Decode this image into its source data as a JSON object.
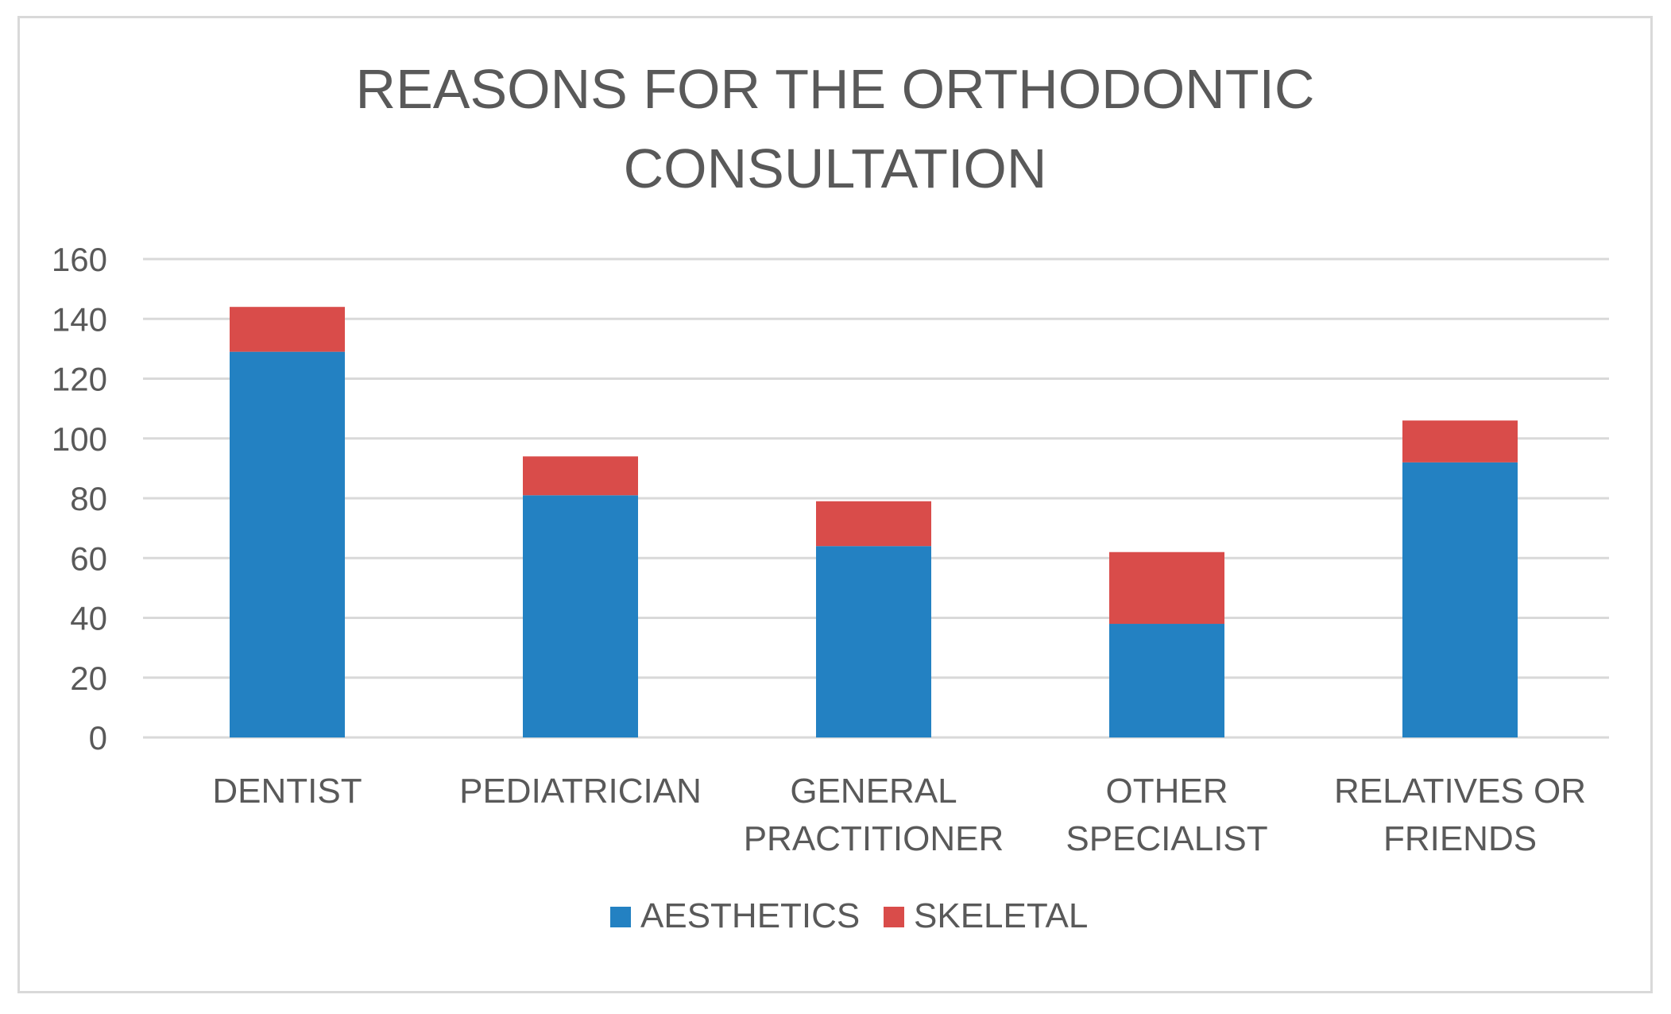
{
  "chart_data": {
    "type": "bar",
    "stacked": true,
    "title": [
      "REASONS FOR THE ORTHODONTIC",
      "CONSULTATION"
    ],
    "categories": [
      [
        "DENTIST"
      ],
      [
        "PEDIATRICIAN"
      ],
      [
        "GENERAL",
        "PRACTITIONER"
      ],
      [
        "OTHER",
        "SPECIALIST"
      ],
      [
        "RELATIVES OR",
        "FRIENDS"
      ]
    ],
    "series": [
      {
        "name": "AESTHETICS",
        "color": "#2381c2",
        "values": [
          129,
          81,
          64,
          38,
          92
        ]
      },
      {
        "name": "SKELETAL",
        "color": "#d94c4a",
        "values": [
          15,
          13,
          15,
          24,
          14
        ]
      }
    ],
    "ylim": [
      0,
      160
    ],
    "yticks": [
      0,
      20,
      40,
      60,
      80,
      100,
      120,
      140,
      160
    ],
    "grid": true,
    "gridColor": "#d9d9d9",
    "legend_position": "bottom-center"
  }
}
